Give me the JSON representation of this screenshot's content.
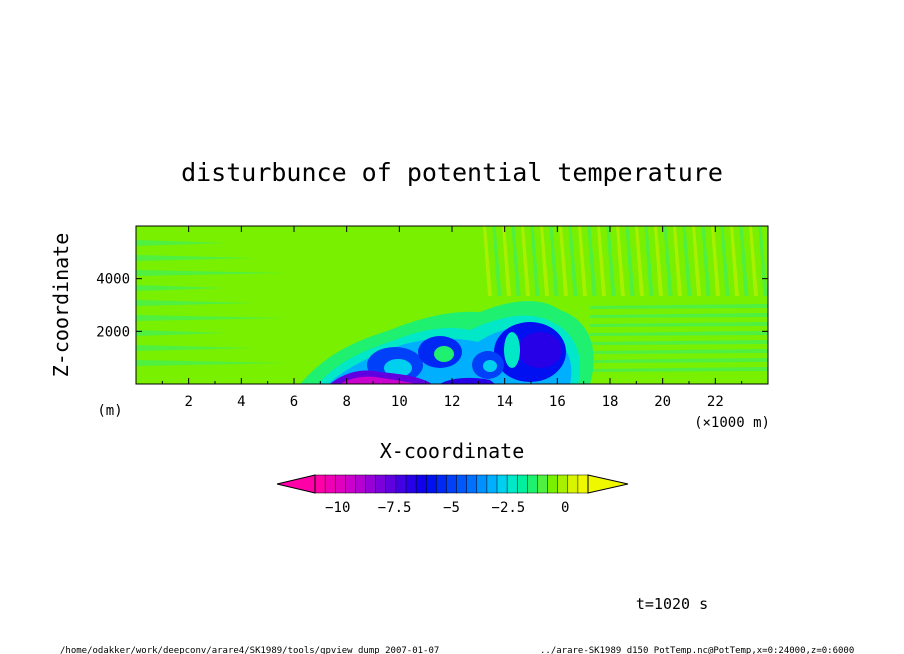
{
  "chart_data": {
    "type": "heatmap",
    "title": "disturbunce of potential temperature",
    "xlabel": "X-coordinate",
    "ylabel": "Z-coordinate",
    "x_unit": "(×1000 m)",
    "y_unit": "(m)",
    "xlim": [
      0,
      24
    ],
    "ylim": [
      0,
      6000
    ],
    "x_ticks": [
      "2",
      "4",
      "6",
      "8",
      "10",
      "12",
      "14",
      "16",
      "18",
      "20",
      "22"
    ],
    "y_ticks": [
      "2000",
      "4000"
    ],
    "colorbar": {
      "ticks": [
        "−10",
        "−7.5",
        "−5",
        "−2.5",
        "0"
      ],
      "colors": [
        "#ff00a8",
        "#f000b4",
        "#e000c0",
        "#cc00cc",
        "#b400d2",
        "#9800d8",
        "#7c00dc",
        "#6000e0",
        "#4400e4",
        "#2800e8",
        "#1000ec",
        "#0010f0",
        "#0028f4",
        "#0040f8",
        "#0058fc",
        "#0070ff",
        "#0090ff",
        "#00b0ff",
        "#00d0f0",
        "#00e8c8",
        "#00f0a0",
        "#20f070",
        "#50f040",
        "#78f000",
        "#a8f000",
        "#d8f400",
        "#f0f800"
      ]
    },
    "time_label": "t=1020 s",
    "cold_pool_features": [
      {
        "x": 7.5,
        "z": 200,
        "value": -9
      },
      {
        "x": 10.2,
        "z": 1000,
        "value": -4
      },
      {
        "x": 15.0,
        "z": 1400,
        "value": -5
      },
      {
        "x": 12.5,
        "z": 400,
        "value": -6
      }
    ],
    "background_value": 0
  },
  "footer": {
    "left": "/home/odakker/work/deepconv/arare4/SK1989/tools/gpview_dump  2007-01-07",
    "right": "../arare-SK1989_d150_PotTemp.nc@PotTemp,x=0:24000,z=0:6000"
  }
}
